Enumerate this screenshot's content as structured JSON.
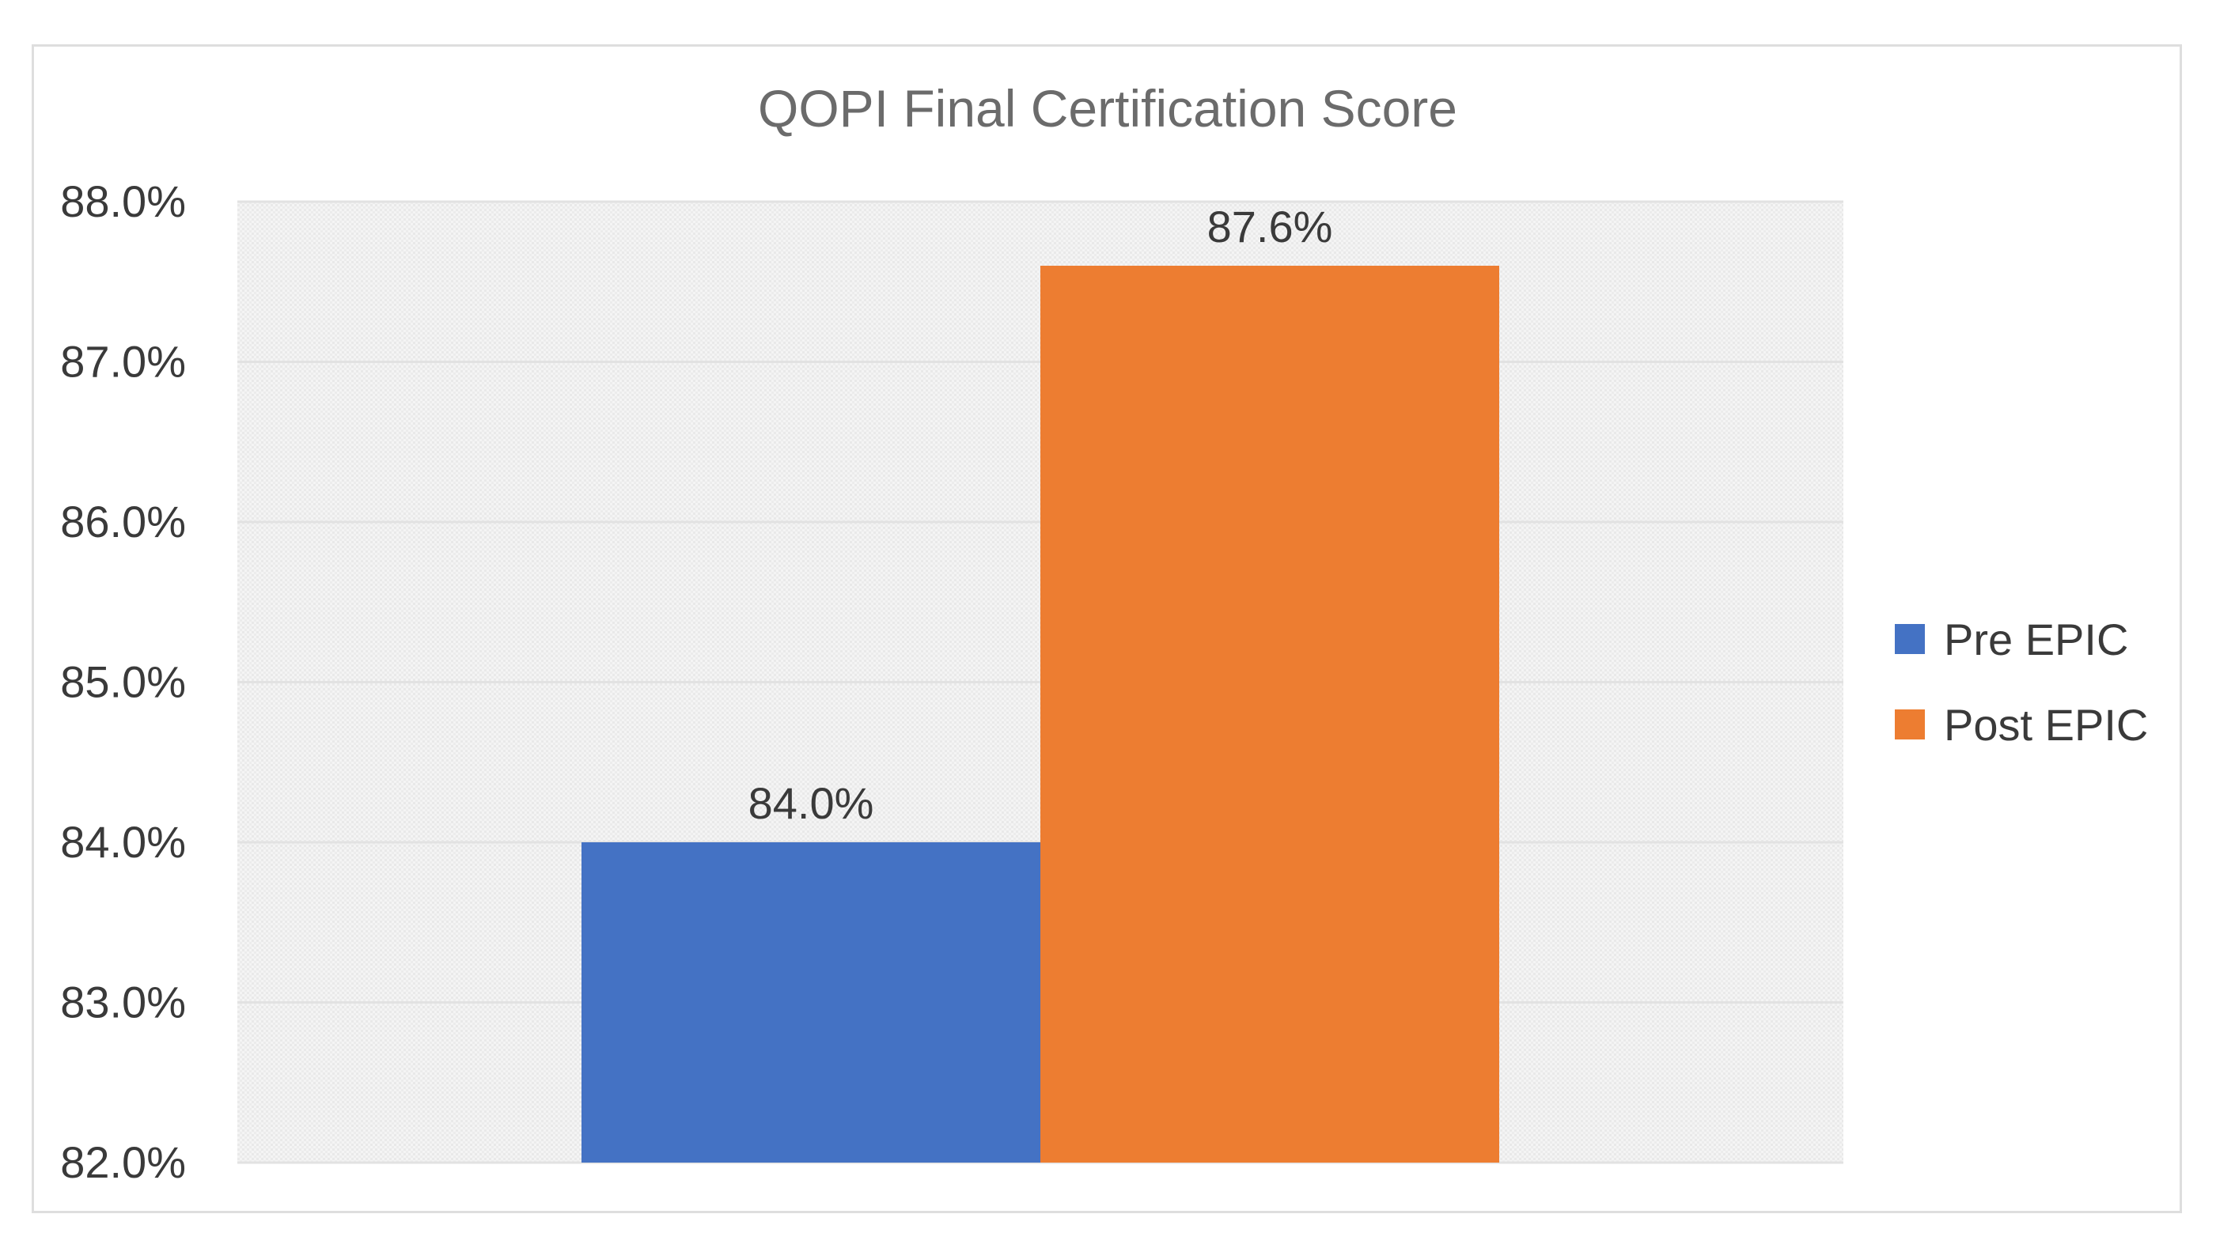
{
  "chart_data": {
    "type": "bar",
    "title": "QOPI Final Certification Score",
    "categories": [
      ""
    ],
    "series": [
      {
        "name": "Pre EPIC",
        "values": [
          84.0
        ],
        "color": "#4472C4",
        "label": "84.0%"
      },
      {
        "name": "Post EPIC",
        "values": [
          87.6
        ],
        "color": "#ED7D31",
        "label": "87.6%"
      }
    ],
    "ylim": [
      82.0,
      88.0
    ],
    "yticks": [
      {
        "value": 82.0,
        "label": "82.0%"
      },
      {
        "value": 83.0,
        "label": "83.0%"
      },
      {
        "value": 84.0,
        "label": "84.0%"
      },
      {
        "value": 85.0,
        "label": "85.0%"
      },
      {
        "value": 86.0,
        "label": "86.0%"
      },
      {
        "value": 87.0,
        "label": "87.0%"
      },
      {
        "value": 88.0,
        "label": "88.0%"
      }
    ],
    "grid": true,
    "legend_position": "right",
    "plot_background": "#f2f2f2",
    "gridline_color": "#e2e2e2"
  }
}
